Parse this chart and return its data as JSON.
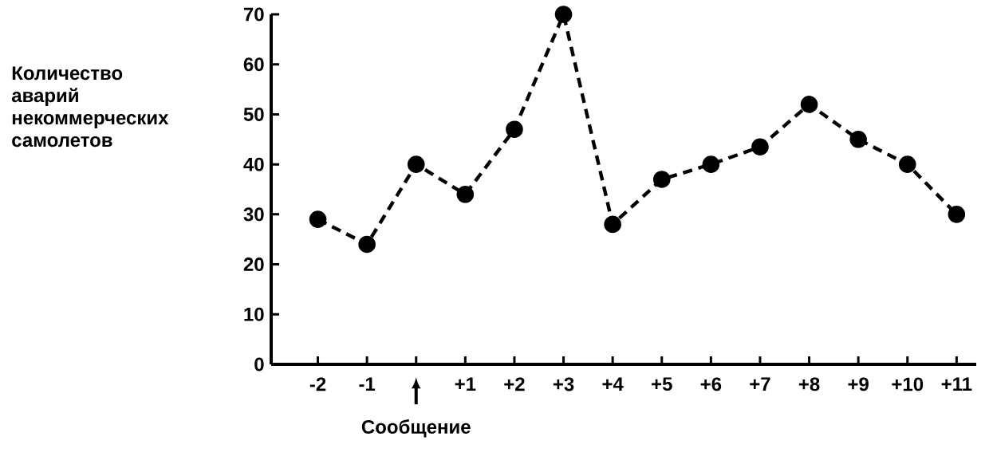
{
  "chart_data": {
    "type": "line",
    "ylabel": "Количество аварий некоммерческих самолетов",
    "categories": [
      "-2",
      "-1",
      null,
      "+1",
      "+2",
      "+3",
      "+4",
      "+5",
      "+6",
      "+7",
      "+8",
      "+9",
      "+10",
      "+11"
    ],
    "series": [
      {
        "color": "#000000",
        "values": [
          29,
          24,
          40,
          34,
          47,
          70,
          28,
          37,
          40,
          43.5,
          52,
          45,
          40,
          30
        ]
      }
    ],
    "ylim": [
      0,
      70
    ],
    "yticks": [
      0,
      10,
      20,
      30,
      40,
      50,
      60,
      70
    ],
    "marker": "circle",
    "line_style": "dashed",
    "grid": false,
    "annotations": [
      "Сообщение"
    ]
  }
}
